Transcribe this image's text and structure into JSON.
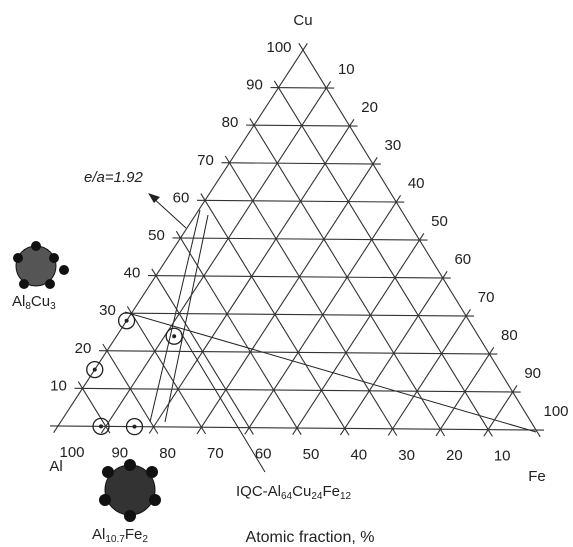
{
  "chart_data": {
    "type": "ternary",
    "title": "Atomic fraction, %",
    "vertices": {
      "top": "Cu",
      "left": "Al",
      "right": "Fe"
    },
    "cu_ticks": [
      10,
      20,
      30,
      40,
      50,
      60,
      70,
      80,
      90,
      100
    ],
    "fe_ticks": [
      10,
      20,
      30,
      40,
      50,
      60,
      70,
      80,
      90,
      100
    ],
    "al_ticks": [
      100,
      90,
      80,
      70,
      60,
      50,
      40,
      30,
      20,
      10
    ],
    "points": [
      {
        "al": 72,
        "cu": 28,
        "fe": 0
      },
      {
        "al": 85,
        "cu": 15,
        "fe": 0
      },
      {
        "al": 91,
        "cu": 0,
        "fe": 9
      },
      {
        "al": 84,
        "cu": 0,
        "fe": 16
      },
      {
        "al": 64,
        "cu": 24,
        "fe": 12
      }
    ],
    "annotation": "e/a=1.92",
    "iqc_label": [
      "IQC-Al",
      "64",
      "Cu",
      "24",
      "Fe",
      "12"
    ],
    "phase_1": [
      "Al",
      "8",
      "Cu",
      "3"
    ],
    "phase_2": [
      "Al",
      "10.7",
      "Fe",
      "2"
    ]
  }
}
